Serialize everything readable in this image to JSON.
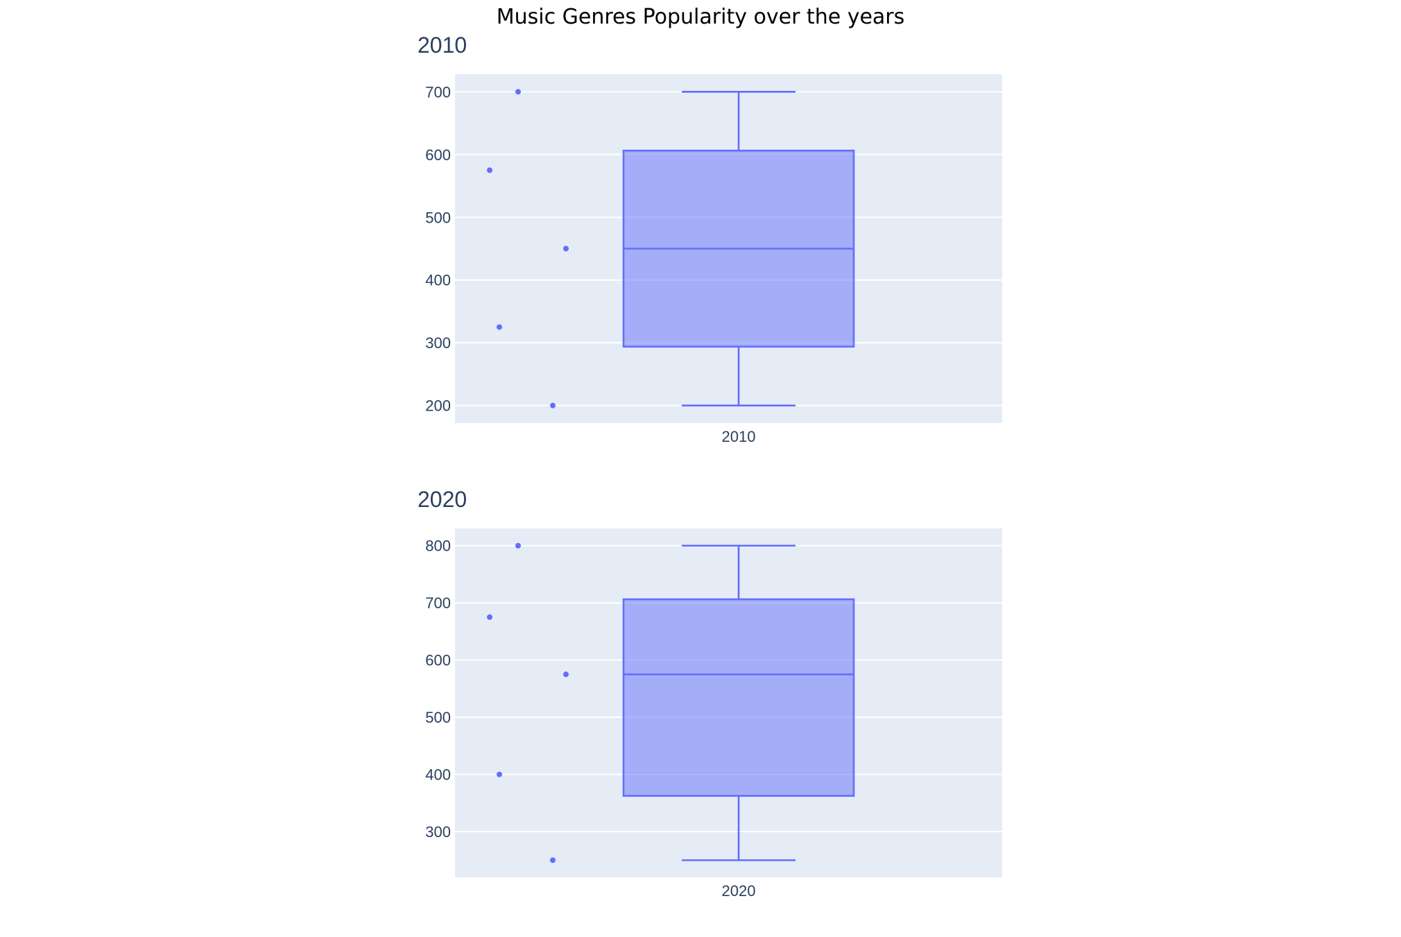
{
  "title": "Music Genres Popularity over the years",
  "colors": {
    "box_fill": "rgba(99,110,250,0.5)",
    "box_line": "#636efa",
    "plot_bg": "#e5ecf6",
    "text": "#2a3f5f"
  },
  "chart_data": [
    {
      "type": "box",
      "title": "2010",
      "category": "2010",
      "points": [
        700,
        575,
        450,
        325,
        200
      ],
      "stats": {
        "min": 200,
        "q1": 293.75,
        "median": 450,
        "q3": 606.25,
        "max": 700
      },
      "yticks": [
        200,
        300,
        400,
        500,
        600,
        700
      ],
      "ylim": [
        172,
        728
      ],
      "grid": true,
      "show_points": "all"
    },
    {
      "type": "box",
      "title": "2020",
      "category": "2020",
      "points": [
        800,
        675,
        575,
        400,
        250
      ],
      "stats": {
        "min": 250,
        "q1": 362.5,
        "median": 575,
        "q3": 706.25,
        "max": 800
      },
      "yticks": [
        300,
        400,
        500,
        600,
        700,
        800
      ],
      "ylim": [
        220,
        830
      ],
      "grid": true,
      "show_points": "all"
    }
  ]
}
